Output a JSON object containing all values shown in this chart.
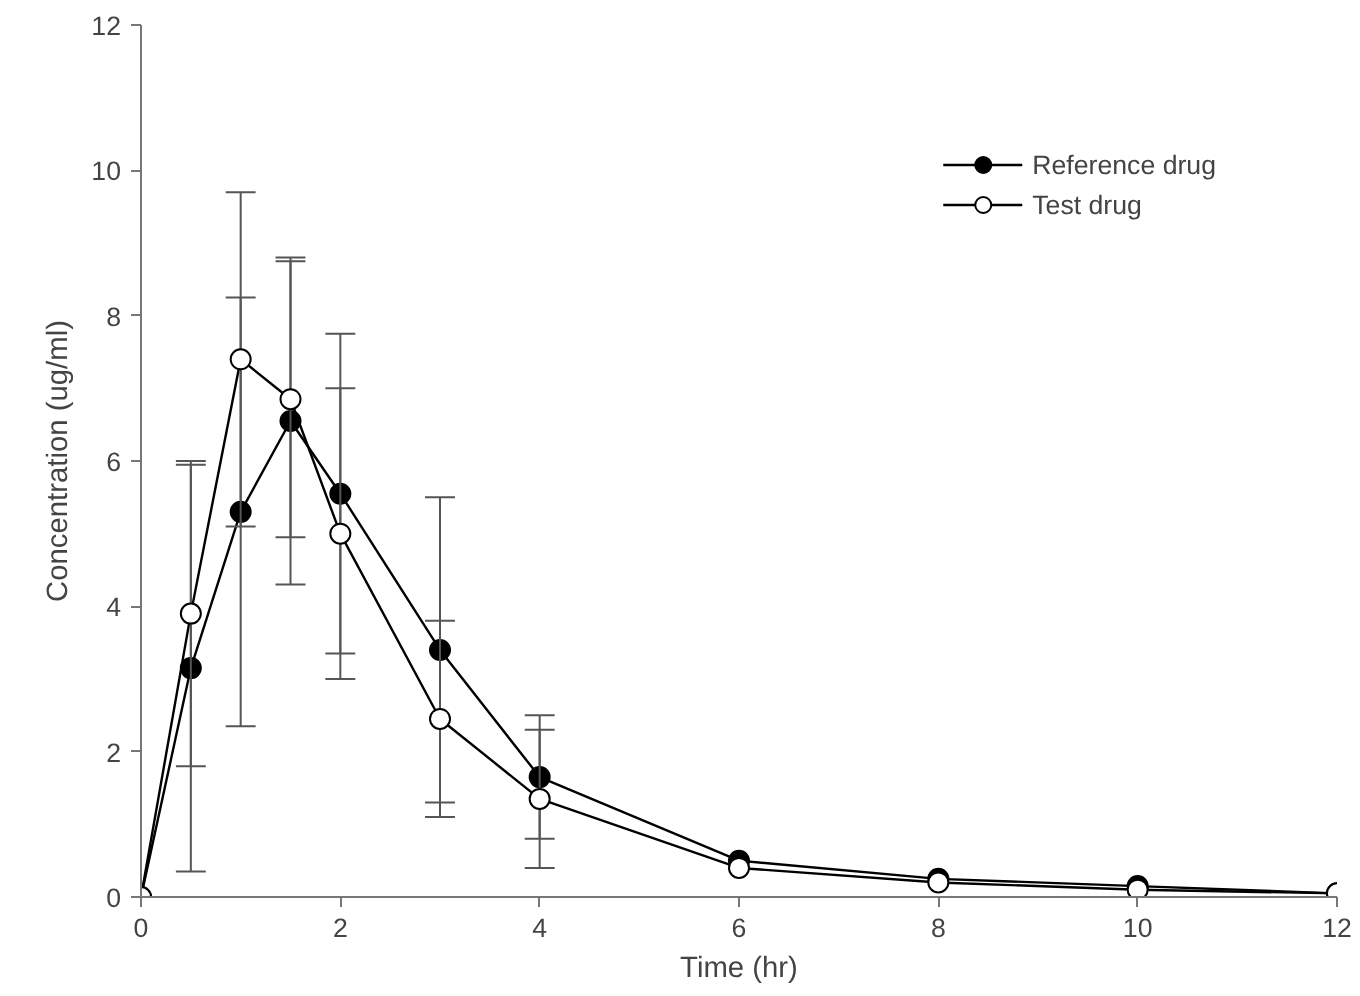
{
  "chart_data": {
    "type": "line",
    "xlabel": "Time (hr)",
    "ylabel": "Concentration (ug/ml)",
    "x": [
      0,
      0.5,
      1,
      1.5,
      2,
      3,
      4,
      6,
      8,
      10,
      12
    ],
    "series": [
      {
        "name": "Reference drug",
        "color": "#000000",
        "values": [
          0,
          3.15,
          5.3,
          6.55,
          5.55,
          3.4,
          1.65,
          0.5,
          0.25,
          0.15,
          0.05
        ],
        "errors": [
          null,
          2.8,
          2.95,
          2.25,
          2.2,
          2.1,
          0.85,
          null,
          null,
          null,
          null
        ]
      },
      {
        "name": "Test drug",
        "color": "#000000",
        "values": [
          0,
          3.9,
          7.4,
          6.85,
          5.0,
          2.45,
          1.35,
          0.4,
          0.2,
          0.1,
          0.05
        ],
        "errors": [
          null,
          2.1,
          2.3,
          1.9,
          2.0,
          1.35,
          0.95,
          null,
          null,
          null,
          null
        ]
      }
    ],
    "xlim": [
      0,
      12
    ],
    "xticks": [
      0,
      2,
      4,
      6,
      8,
      10,
      12
    ],
    "ylim": [
      0,
      12
    ],
    "yticks": [
      0,
      2,
      4,
      6,
      8,
      10,
      12
    ],
    "grid": false,
    "legend": "top right",
    "marker": "circle",
    "line_style": "solid"
  }
}
